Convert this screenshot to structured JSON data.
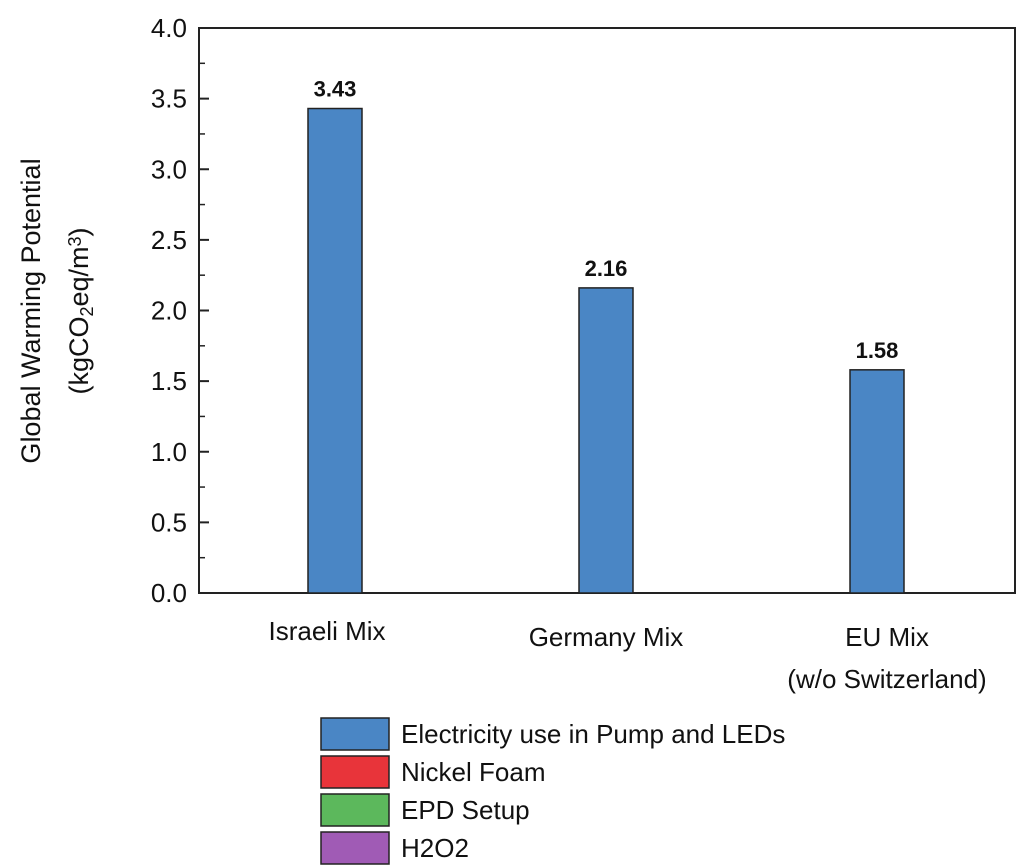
{
  "chart_data": {
    "type": "bar",
    "categories": [
      {
        "line1": "Israeli Mix",
        "line2": ""
      },
      {
        "line1": "Germany Mix",
        "line2": ""
      },
      {
        "line1": "EU Mix",
        "line2": "(w/o Switzerland)"
      }
    ],
    "values": [
      3.43,
      2.16,
      1.58
    ],
    "data_labels": [
      "3.43",
      "2.16",
      "1.58"
    ],
    "ylabel_line1": "Global Warming Potential",
    "ylabel_line2_parts": {
      "a": "(kgCO",
      "sub": "2",
      "b": "eq/m",
      "sup": "3",
      "c": ")"
    },
    "xlabel": "",
    "ylim": [
      0,
      4.0
    ],
    "yticks": [
      "0.0",
      "0.5",
      "1.0",
      "1.5",
      "2.0",
      "2.5",
      "3.0",
      "3.5",
      "4.0"
    ],
    "grid": false,
    "legend_position": "bottom-center",
    "bar_color": "#4a86c5",
    "legend": [
      {
        "label": "Electricity use in Pump and LEDs",
        "color": "#4a86c5"
      },
      {
        "label": "Nickel Foam",
        "color": "#e8343a"
      },
      {
        "label": "EPD Setup",
        "color": "#5cb85c"
      },
      {
        "label": "H2O2",
        "color": "#a05bb5"
      }
    ]
  }
}
